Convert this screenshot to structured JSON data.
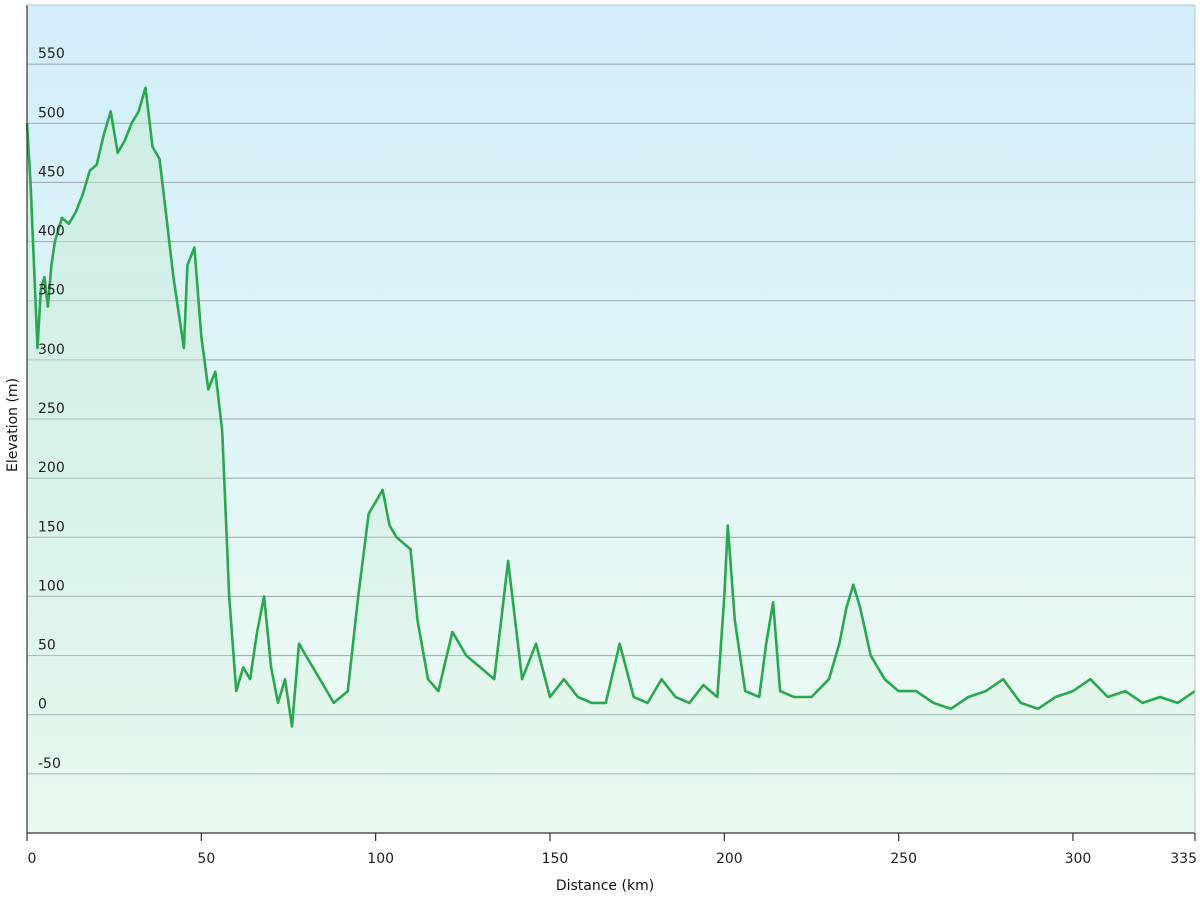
{
  "chart_data": {
    "type": "area",
    "title": "",
    "xlabel": "Distance  (km)",
    "ylabel": "Elevation (m)",
    "xlim": [
      0,
      335
    ],
    "ylim": [
      -100,
      600
    ],
    "x_ticks": [
      0,
      50,
      100,
      150,
      200,
      250,
      300,
      335
    ],
    "x_tick_labels": [
      "0",
      "50",
      "100",
      "150",
      "200",
      "250",
      "300",
      "335"
    ],
    "y_ticks": [
      -50,
      0,
      50,
      100,
      150,
      200,
      250,
      300,
      350,
      400,
      450,
      500,
      550
    ],
    "y_tick_labels": [
      "-50",
      "0",
      "50",
      "100",
      "150",
      "200",
      "250",
      "300",
      "350",
      "400",
      "450",
      "500",
      "550"
    ],
    "grid": "horizontal",
    "colors": {
      "line": "#2aa84f",
      "fill": "#c8ecd4",
      "bg_top": "#d2eefa",
      "bg_bottom": "#eefbf2",
      "grid": "#9aa7ad",
      "axis": "#333333"
    },
    "series": [
      {
        "x": [
          0,
          1,
          2,
          3,
          4,
          5,
          6,
          7,
          8,
          10,
          12,
          14,
          16,
          18,
          20,
          22,
          24,
          26,
          28,
          30,
          32,
          34,
          36,
          38,
          40,
          42,
          44,
          45,
          46,
          48,
          50,
          52,
          54,
          56,
          58,
          60,
          62,
          64,
          66,
          68,
          70,
          72,
          74,
          76,
          78,
          80,
          84,
          88,
          92,
          95,
          98,
          100,
          102,
          104,
          106,
          108,
          110,
          112,
          115,
          118,
          122,
          126,
          130,
          134,
          136,
          138,
          140,
          142,
          146,
          150,
          154,
          158,
          162,
          166,
          170,
          174,
          178,
          182,
          186,
          190,
          194,
          198,
          200,
          201,
          203,
          206,
          210,
          212,
          214,
          216,
          220,
          225,
          230,
          233,
          235,
          237,
          239,
          242,
          246,
          250,
          255,
          260,
          265,
          270,
          275,
          280,
          285,
          290,
          295,
          300,
          305,
          310,
          315,
          320,
          325,
          330,
          335
        ],
        "y": [
          500,
          450,
          380,
          310,
          360,
          370,
          345,
          380,
          400,
          420,
          415,
          425,
          440,
          460,
          465,
          490,
          510,
          475,
          485,
          500,
          510,
          530,
          480,
          470,
          420,
          370,
          330,
          310,
          380,
          395,
          320,
          275,
          290,
          240,
          100,
          20,
          40,
          30,
          70,
          100,
          40,
          10,
          30,
          -10,
          60,
          50,
          30,
          10,
          20,
          100,
          170,
          180,
          190,
          160,
          150,
          145,
          140,
          80,
          30,
          20,
          70,
          50,
          40,
          30,
          80,
          130,
          80,
          30,
          60,
          15,
          30,
          15,
          10,
          10,
          60,
          15,
          10,
          30,
          15,
          10,
          25,
          15,
          100,
          160,
          80,
          20,
          15,
          60,
          95,
          20,
          15,
          15,
          30,
          60,
          90,
          110,
          90,
          50,
          30,
          20,
          20,
          10,
          5,
          15,
          20,
          30,
          10,
          5,
          15,
          20,
          30,
          15,
          20,
          10,
          15,
          10,
          20
        ]
      }
    ]
  }
}
